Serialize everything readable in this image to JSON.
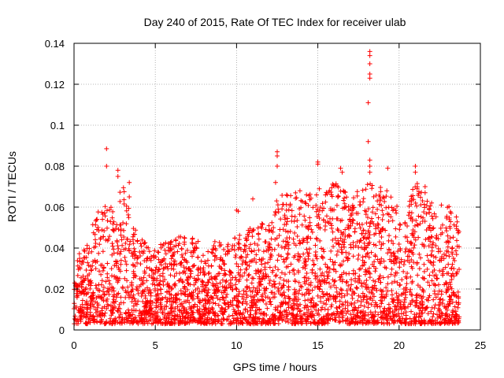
{
  "chart_data": {
    "type": "scatter",
    "title": "Day 240 of 2015, Rate Of TEC Index for receiver ulab",
    "xlabel": "GPS time / hours",
    "ylabel": "ROTI / TECUs",
    "xlim": [
      0,
      25
    ],
    "ylim": [
      0,
      0.14
    ],
    "xticks": [
      "0",
      "5",
      "10",
      "15",
      "20",
      "25"
    ],
    "yticks": [
      "0",
      "0.02",
      "0.04",
      "0.06",
      "0.08",
      "0.1",
      "0.12",
      "0.14"
    ],
    "grid": true,
    "marker": "+",
    "color": "#ff0000",
    "envelope": [
      [
        0.0,
        0.033
      ],
      [
        0.5,
        0.04
      ],
      [
        1.0,
        0.05
      ],
      [
        1.5,
        0.058
      ],
      [
        2.0,
        0.062
      ],
      [
        2.5,
        0.06
      ],
      [
        3.0,
        0.072
      ],
      [
        3.5,
        0.055
      ],
      [
        4.0,
        0.045
      ],
      [
        4.5,
        0.043
      ],
      [
        5.0,
        0.04
      ],
      [
        5.5,
        0.048
      ],
      [
        6.0,
        0.044
      ],
      [
        6.5,
        0.047
      ],
      [
        7.0,
        0.044
      ],
      [
        7.5,
        0.046
      ],
      [
        8.0,
        0.042
      ],
      [
        8.5,
        0.043
      ],
      [
        9.0,
        0.044
      ],
      [
        9.5,
        0.044
      ],
      [
        10.0,
        0.047
      ],
      [
        10.5,
        0.046
      ],
      [
        11.0,
        0.052
      ],
      [
        11.5,
        0.052
      ],
      [
        12.0,
        0.052
      ],
      [
        12.5,
        0.064
      ],
      [
        13.0,
        0.067
      ],
      [
        13.5,
        0.068
      ],
      [
        14.0,
        0.064
      ],
      [
        14.5,
        0.066
      ],
      [
        15.0,
        0.072
      ],
      [
        15.5,
        0.068
      ],
      [
        16.0,
        0.074
      ],
      [
        16.5,
        0.07
      ],
      [
        17.0,
        0.063
      ],
      [
        17.5,
        0.07
      ],
      [
        18.0,
        0.075
      ],
      [
        18.5,
        0.07
      ],
      [
        19.0,
        0.072
      ],
      [
        19.5,
        0.065
      ],
      [
        20.0,
        0.06
      ],
      [
        20.5,
        0.061
      ],
      [
        21.0,
        0.076
      ],
      [
        21.5,
        0.065
      ],
      [
        22.0,
        0.062
      ],
      [
        22.5,
        0.05
      ],
      [
        23.0,
        0.061
      ],
      [
        23.5,
        0.057
      ]
    ],
    "outliers": [
      [
        2.0,
        0.0885
      ],
      [
        2.0,
        0.08
      ],
      [
        2.7,
        0.078
      ],
      [
        2.7,
        0.075
      ],
      [
        3.4,
        0.072
      ],
      [
        3.4,
        0.065
      ],
      [
        12.5,
        0.087
      ],
      [
        12.5,
        0.085
      ],
      [
        12.5,
        0.08
      ],
      [
        12.4,
        0.072
      ],
      [
        15.0,
        0.082
      ],
      [
        15.0,
        0.081
      ],
      [
        16.4,
        0.079
      ],
      [
        16.5,
        0.077
      ],
      [
        18.2,
        0.136
      ],
      [
        18.2,
        0.134
      ],
      [
        18.2,
        0.13
      ],
      [
        18.2,
        0.125
      ],
      [
        18.2,
        0.123
      ],
      [
        18.1,
        0.111
      ],
      [
        18.1,
        0.092
      ],
      [
        18.2,
        0.083
      ],
      [
        18.2,
        0.08
      ],
      [
        18.2,
        0.077
      ],
      [
        19.3,
        0.079
      ],
      [
        21.0,
        0.08
      ],
      [
        21.0,
        0.077
      ],
      [
        21.6,
        0.07
      ],
      [
        21.6,
        0.067
      ],
      [
        22.0,
        0.062
      ],
      [
        22.6,
        0.061
      ],
      [
        23.2,
        0.057
      ],
      [
        10.1,
        0.058
      ],
      [
        10.0,
        0.0585
      ],
      [
        11.0,
        0.064
      ],
      [
        13.9,
        0.068
      ],
      [
        14.3,
        0.066
      ]
    ],
    "time_range": [
      0.0,
      23.7
    ]
  }
}
